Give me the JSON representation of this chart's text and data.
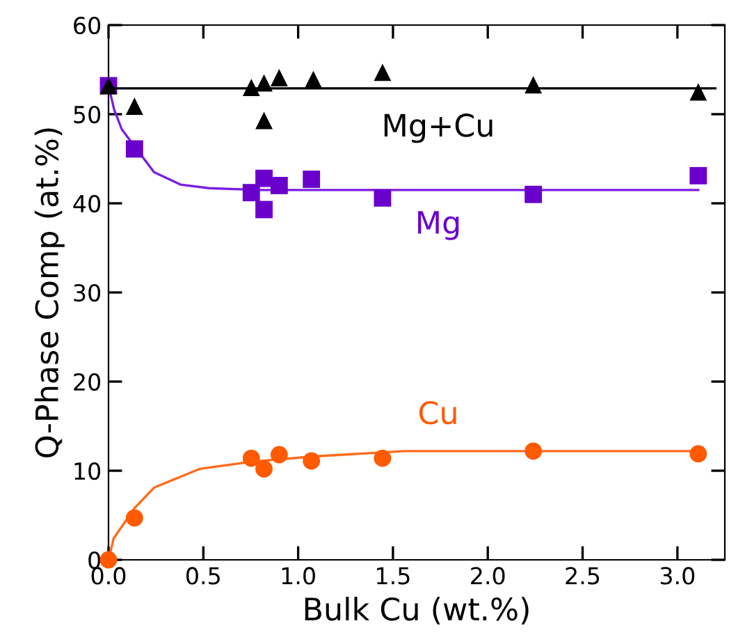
{
  "chart_data": {
    "type": "scatter",
    "xlabel": "Bulk Cu (wt.%)",
    "ylabel": "Q-Phase Comp (at.%)",
    "xlim": [
      0,
      3.25
    ],
    "ylim": [
      0,
      60
    ],
    "xticks": [
      {
        "value": 0,
        "label": "0.0"
      },
      {
        "value": 0.5,
        "label": "0.5"
      },
      {
        "value": 1,
        "label": "1.0"
      },
      {
        "value": 1.5,
        "label": "1.5"
      },
      {
        "value": 2,
        "label": "2.0"
      },
      {
        "value": 2.5,
        "label": "2.5"
      },
      {
        "value": 3,
        "label": "3.0"
      }
    ],
    "yticks": [
      0,
      10,
      20,
      30,
      40,
      50,
      60
    ],
    "grid": false,
    "legend": false,
    "series": [
      {
        "type": "line",
        "color": "#ff6a1a",
        "marker": "none",
        "x": [
          0,
          0.027,
          0.137,
          0.24,
          0.48,
          0.753,
          1.08,
          1.56,
          3.11
        ],
        "values": [
          0,
          2.4,
          5.8,
          8.1,
          10.2,
          11.0,
          11.6,
          12.2,
          12.2
        ]
      },
      {
        "name": "Cu",
        "color": "#ff5a00",
        "marker": "circle",
        "x": [
          0,
          0.137,
          0.753,
          0.82,
          0.9,
          1.07,
          1.445,
          2.24,
          3.11
        ],
        "values": [
          0,
          4.7,
          11.4,
          10.2,
          11.8,
          11.1,
          11.4,
          12.2,
          11.9
        ]
      },
      {
        "type": "line",
        "color": "#7a1ee0",
        "marker": "none",
        "x": [
          0,
          0.03,
          0.07,
          0.137,
          0.24,
          0.38,
          0.53,
          0.8,
          3.11
        ],
        "values": [
          53.2,
          50.5,
          48.3,
          46.4,
          43.5,
          42.1,
          41.7,
          41.5,
          41.5
        ]
      },
      {
        "name": "Mg",
        "color": "#6a00cc",
        "marker": "square",
        "x": [
          0,
          0.137,
          0.753,
          0.82,
          0.82,
          0.9,
          1.07,
          1.445,
          2.24,
          3.11
        ],
        "values": [
          53.2,
          46.1,
          41.2,
          42.8,
          39.3,
          42.0,
          42.7,
          40.6,
          41.0,
          43.1
        ]
      },
      {
        "type": "line",
        "color": "#000000",
        "marker": "none",
        "x": [
          0,
          3.2
        ],
        "values": [
          52.9,
          52.9
        ]
      },
      {
        "name": "Mg+Cu",
        "color": "#000000",
        "marker": "triangle",
        "x": [
          0,
          0.137,
          0.753,
          0.82,
          0.9,
          1.08,
          1.445,
          2.24,
          3.11,
          0.82
        ],
        "values": [
          53.2,
          50.9,
          53.0,
          53.5,
          54.1,
          53.9,
          54.7,
          53.3,
          52.5,
          49.3
        ]
      }
    ]
  }
}
